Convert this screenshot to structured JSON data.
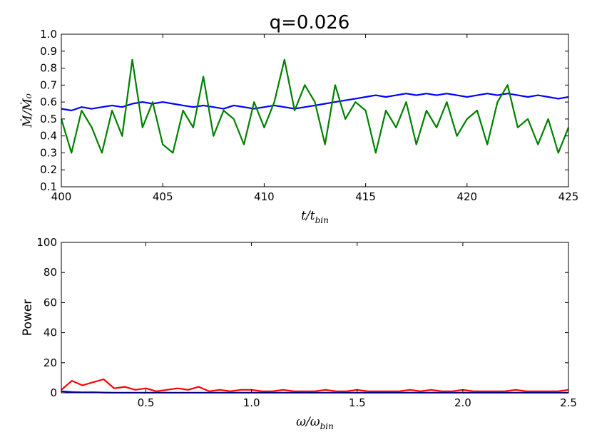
{
  "chart_data": [
    {
      "type": "line",
      "title": "q=0.026",
      "ylabel": "Ṁ/Ṁ₀",
      "xlabel": {
        "main": "t/t",
        "sub": "bin"
      },
      "x": [
        400,
        400.5,
        401,
        401.5,
        402,
        402.5,
        403,
        403.5,
        404,
        404.5,
        405,
        405.5,
        406,
        406.5,
        407,
        407.5,
        408,
        408.5,
        409,
        409.5,
        410,
        410.5,
        411,
        411.5,
        412,
        412.5,
        413,
        413.5,
        414,
        414.5,
        415,
        415.5,
        416,
        416.5,
        417,
        417.5,
        418,
        418.5,
        419,
        419.5,
        420,
        420.5,
        421,
        421.5,
        422,
        422.5,
        423,
        423.5,
        424,
        424.5,
        425
      ],
      "series": [
        {
          "name": "blue",
          "color": "#0000ff",
          "values": [
            0.56,
            0.55,
            0.57,
            0.56,
            0.57,
            0.58,
            0.57,
            0.59,
            0.6,
            0.59,
            0.6,
            0.59,
            0.58,
            0.57,
            0.58,
            0.57,
            0.56,
            0.58,
            0.57,
            0.56,
            0.57,
            0.58,
            0.57,
            0.56,
            0.57,
            0.58,
            0.59,
            0.6,
            0.61,
            0.62,
            0.63,
            0.64,
            0.63,
            0.64,
            0.65,
            0.64,
            0.65,
            0.64,
            0.65,
            0.64,
            0.63,
            0.64,
            0.65,
            0.64,
            0.65,
            0.64,
            0.63,
            0.64,
            0.63,
            0.62,
            0.63
          ]
        },
        {
          "name": "green",
          "color": "#008000",
          "values": [
            0.5,
            0.3,
            0.55,
            0.45,
            0.3,
            0.55,
            0.4,
            0.85,
            0.45,
            0.6,
            0.35,
            0.3,
            0.55,
            0.45,
            0.75,
            0.4,
            0.55,
            0.5,
            0.35,
            0.6,
            0.45,
            0.6,
            0.85,
            0.55,
            0.7,
            0.6,
            0.35,
            0.7,
            0.5,
            0.6,
            0.55,
            0.3,
            0.55,
            0.45,
            0.6,
            0.35,
            0.55,
            0.45,
            0.6,
            0.4,
            0.5,
            0.55,
            0.35,
            0.6,
            0.7,
            0.45,
            0.5,
            0.35,
            0.5,
            0.3,
            0.45
          ]
        }
      ],
      "xlim": [
        400,
        425
      ],
      "xticks": [
        400,
        405,
        410,
        415,
        420,
        425
      ],
      "ylim": [
        0.1,
        1
      ],
      "yticks": [
        0.1,
        0.2,
        0.3,
        0.4,
        0.5,
        0.6,
        0.7,
        0.8,
        0.9,
        {
          "value": 1,
          "label": "1.0"
        }
      ]
    },
    {
      "type": "line",
      "ylabel": "Power",
      "xlabel": {
        "main": "ω/ω",
        "sub": "bin"
      },
      "x": [
        0.1,
        0.15,
        0.2,
        0.25,
        0.3,
        0.35,
        0.4,
        0.45,
        0.5,
        0.55,
        0.6,
        0.65,
        0.7,
        0.75,
        0.8,
        0.85,
        0.9,
        0.95,
        1,
        1.05,
        1.1,
        1.15,
        1.2,
        1.25,
        1.3,
        1.35,
        1.4,
        1.45,
        1.5,
        1.55,
        1.6,
        1.65,
        1.7,
        1.75,
        1.8,
        1.85,
        1.9,
        1.95,
        2,
        2.05,
        2.1,
        2.15,
        2.2,
        2.25,
        2.3,
        2.35,
        2.4,
        2.45,
        2.5
      ],
      "series": [
        {
          "name": "blue",
          "color": "#0000ff",
          "values": [
            1,
            0.5,
            0.3,
            0.4,
            0.2,
            0.1,
            0.1,
            0.1,
            0.1,
            0.1,
            0.1,
            0.1,
            0.1,
            0.1,
            0.1,
            0.1,
            0.1,
            0.1,
            0.1,
            0.1,
            0.1,
            0.1,
            0.1,
            0.1,
            0.1,
            0.1,
            0.1,
            0.1,
            0.1,
            0.1,
            0.1,
            0.1,
            0.1,
            0.1,
            0.1,
            0.1,
            0.1,
            0.1,
            0.1,
            0.1,
            0.1,
            0.1,
            0.1,
            0.1,
            0.1,
            0.1,
            0.1,
            0.1,
            0.1
          ]
        },
        {
          "name": "red",
          "color": "#ff0000",
          "values": [
            2,
            8,
            5,
            7,
            9,
            3,
            4,
            2,
            3,
            1,
            2,
            3,
            2,
            4,
            1,
            2,
            1,
            2,
            2,
            1,
            1,
            2,
            1,
            1,
            1,
            2,
            1,
            1,
            2,
            1,
            1,
            1,
            1,
            2,
            1,
            2,
            1,
            1,
            2,
            1,
            1,
            1,
            1,
            2,
            1,
            1,
            1,
            1,
            2
          ]
        }
      ],
      "xlim": [
        0.1,
        2.5
      ],
      "xticks": [
        0.5,
        {
          "value": 1,
          "label": "1.0"
        },
        1.5,
        {
          "value": 2,
          "label": "2.0"
        },
        2.5
      ],
      "ylim": [
        0,
        100
      ],
      "yticks": [
        0,
        20,
        40,
        60,
        80,
        100
      ]
    }
  ]
}
